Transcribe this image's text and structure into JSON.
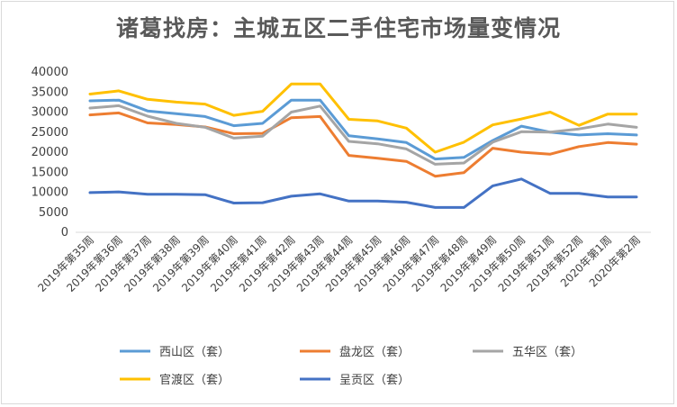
{
  "chart_data": {
    "type": "line",
    "title": "诸葛找房：主城五区二手住宅市场量变情况",
    "xlabel": "",
    "ylabel": "",
    "ylim": [
      0,
      40000
    ],
    "yticks": [
      "0",
      "5000",
      "10000",
      "15000",
      "20000",
      "25000",
      "30000",
      "35000",
      "40000"
    ],
    "grid": false,
    "legend_position": "bottom",
    "categories": [
      "2019年第35周",
      "2019年第36周",
      "2019年第37周",
      "2019年第38周",
      "2019年第39周",
      "2019年第40周",
      "2019年第41周",
      "2019年第42周",
      "2019年第43周",
      "2019年第44周",
      "2019年第45周",
      "2019年第46周",
      "2019年第47周",
      "2019年第48周",
      "2019年第49周",
      "2019年第50周",
      "2019年第51周",
      "2019年第52周",
      "2020年第1周",
      "2020年第2周"
    ],
    "series": [
      {
        "name": "西山区（套）",
        "color": "#5b9bd5",
        "values": [
          32800,
          33000,
          30300,
          29600,
          28900,
          26600,
          27200,
          33000,
          33000,
          24100,
          23300,
          22400,
          18300,
          18700,
          22900,
          26500,
          25000,
          24300,
          24600,
          24300
        ]
      },
      {
        "name": "盘龙区（套）",
        "color": "#ed7d31",
        "values": [
          29300,
          29800,
          27300,
          26900,
          26300,
          24600,
          24700,
          28600,
          28900,
          19200,
          18500,
          17700,
          14000,
          14900,
          21000,
          20000,
          19500,
          21400,
          22400,
          22000
        ]
      },
      {
        "name": "五华区（套）",
        "color": "#a5a5a5",
        "values": [
          31000,
          31600,
          29000,
          27200,
          26200,
          23500,
          24000,
          30000,
          31500,
          22700,
          22100,
          20800,
          17000,
          17300,
          22500,
          25100,
          25000,
          25800,
          27000,
          26200
        ]
      },
      {
        "name": "官渡区（套）",
        "color": "#ffc000",
        "values": [
          34500,
          35300,
          33200,
          32500,
          32000,
          29200,
          30200,
          37000,
          37000,
          28200,
          27800,
          26000,
          20000,
          22500,
          26800,
          28300,
          30000,
          26700,
          29500,
          29500
        ]
      },
      {
        "name": "呈贡区（套）",
        "color": "#4472c4",
        "values": [
          9900,
          10100,
          9500,
          9500,
          9400,
          7300,
          7400,
          9000,
          9600,
          7800,
          7800,
          7500,
          6200,
          6200,
          11600,
          13300,
          9700,
          9700,
          8800,
          8800
        ]
      }
    ]
  }
}
